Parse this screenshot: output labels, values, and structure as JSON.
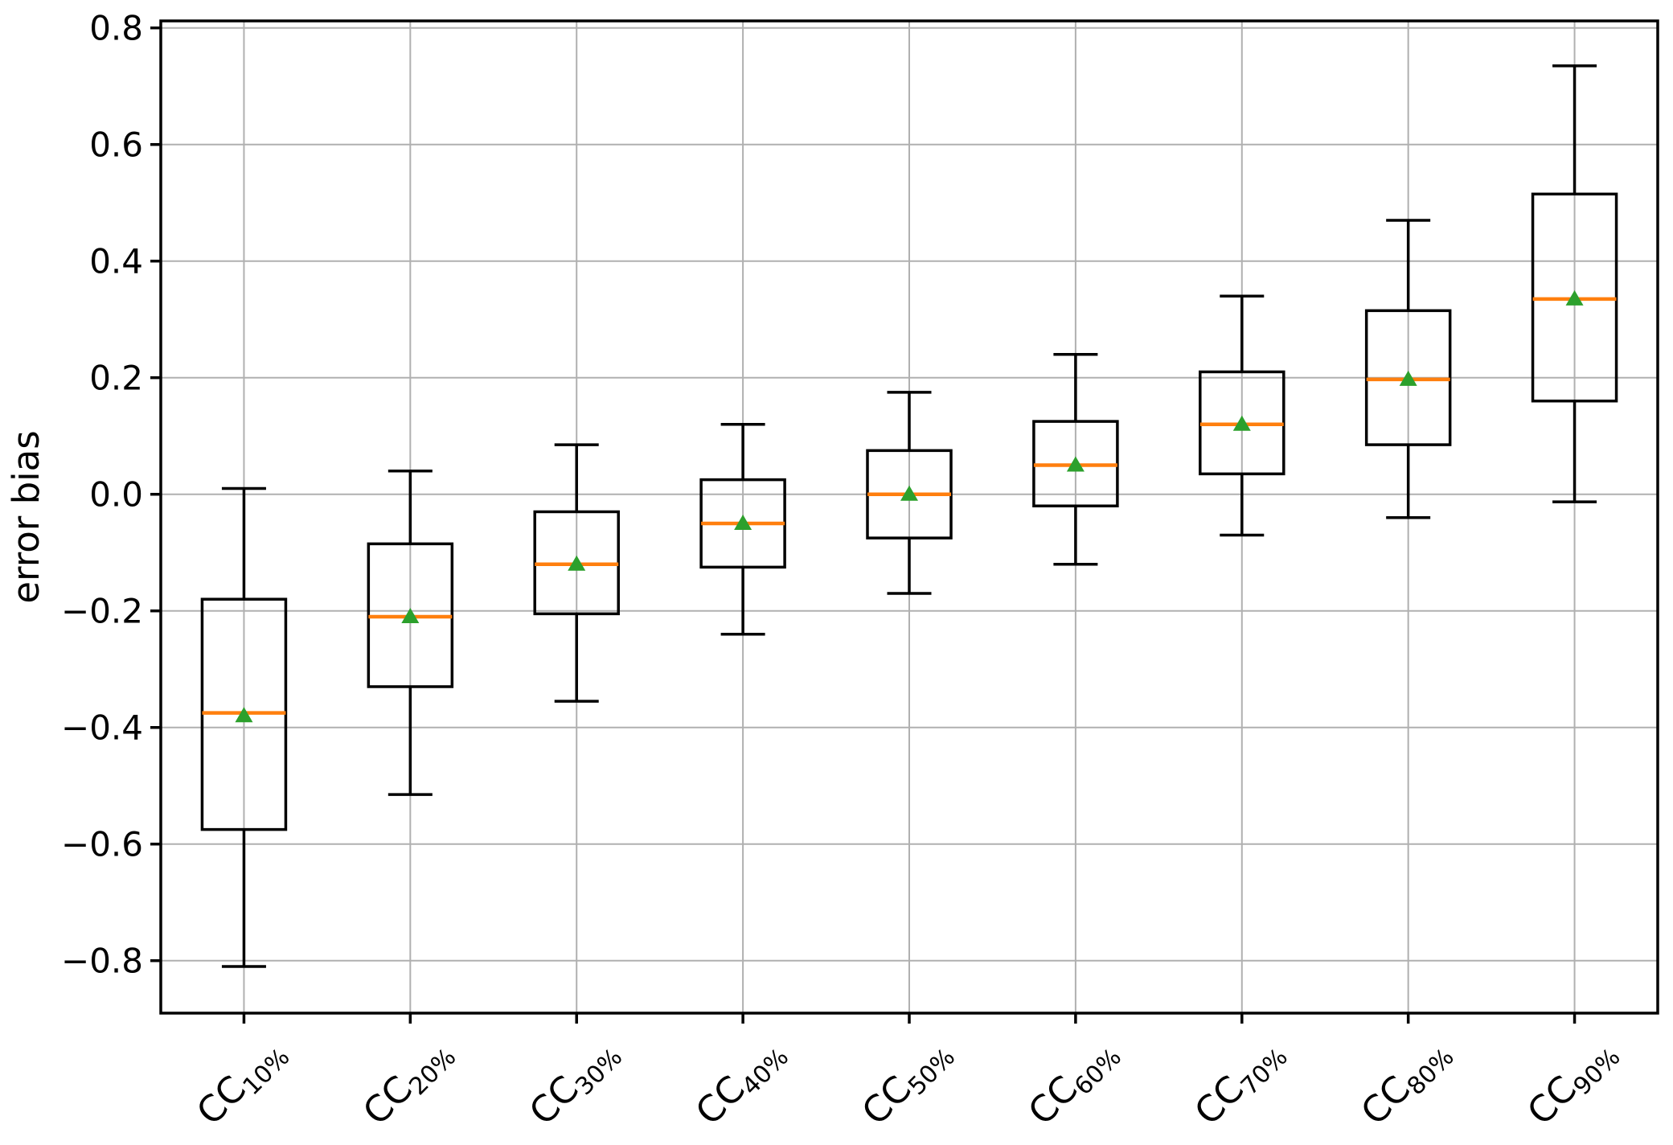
{
  "figure": {
    "background": "#ffffff"
  },
  "chart_data": {
    "type": "boxplot",
    "title": "",
    "xlabel": "",
    "ylabel": "error bias",
    "grid": true,
    "grid_color": "#b0b0b0",
    "ylim": [
      -0.89,
      0.812
    ],
    "yticks": [
      0.8,
      0.6,
      0.4,
      0.2,
      0.0,
      -0.2,
      -0.4,
      -0.6,
      -0.8
    ],
    "ytick_labels": [
      "0.8",
      "0.6",
      "0.4",
      "0.2",
      "0.0",
      "−0.2",
      "−0.4",
      "−0.6",
      "−0.8"
    ],
    "categories": [
      {
        "label": "CC10%",
        "base": "CC",
        "sub": "10%"
      },
      {
        "label": "CC20%",
        "base": "CC",
        "sub": "20%"
      },
      {
        "label": "CC30%",
        "base": "CC",
        "sub": "30%"
      },
      {
        "label": "CC40%",
        "base": "CC",
        "sub": "40%"
      },
      {
        "label": "CC50%",
        "base": "CC",
        "sub": "50%"
      },
      {
        "label": "CC60%",
        "base": "CC",
        "sub": "60%"
      },
      {
        "label": "CC70%",
        "base": "CC",
        "sub": "70%"
      },
      {
        "label": "CC80%",
        "base": "CC",
        "sub": "80%"
      },
      {
        "label": "CC90%",
        "base": "CC",
        "sub": "90%"
      }
    ],
    "series": [
      {
        "label": "CC10%",
        "whislo": -0.81,
        "q1": -0.575,
        "med": -0.375,
        "mean": -0.38,
        "q3": -0.18,
        "whishi": 0.01
      },
      {
        "label": "CC20%",
        "whislo": -0.515,
        "q1": -0.33,
        "med": -0.21,
        "mean": -0.21,
        "q3": -0.085,
        "whishi": 0.04
      },
      {
        "label": "CC30%",
        "whislo": -0.355,
        "q1": -0.205,
        "med": -0.12,
        "mean": -0.12,
        "q3": -0.03,
        "whishi": 0.085
      },
      {
        "label": "CC40%",
        "whislo": -0.24,
        "q1": -0.125,
        "med": -0.05,
        "mean": -0.05,
        "q3": 0.025,
        "whishi": 0.12
      },
      {
        "label": "CC50%",
        "whislo": -0.17,
        "q1": -0.075,
        "med": 0.0,
        "mean": 0.0,
        "q3": 0.075,
        "whishi": 0.175
      },
      {
        "label": "CC60%",
        "whislo": -0.12,
        "q1": -0.02,
        "med": 0.05,
        "mean": 0.05,
        "q3": 0.125,
        "whishi": 0.24
      },
      {
        "label": "CC70%",
        "whislo": -0.07,
        "q1": 0.035,
        "med": 0.12,
        "mean": 0.12,
        "q3": 0.21,
        "whishi": 0.34
      },
      {
        "label": "CC80%",
        "whislo": -0.04,
        "q1": 0.085,
        "med": 0.197,
        "mean": 0.197,
        "q3": 0.315,
        "whishi": 0.47
      },
      {
        "label": "CC90%",
        "whislo": -0.013,
        "q1": 0.16,
        "med": 0.335,
        "mean": 0.335,
        "q3": 0.515,
        "whishi": 0.735
      }
    ],
    "legend": null,
    "colors": {
      "box_line": "#000000",
      "median_line": "#ff7f0e",
      "mean_marker": "#2ca02c",
      "spine": "#000000",
      "grid": "#b0b0b0"
    }
  }
}
